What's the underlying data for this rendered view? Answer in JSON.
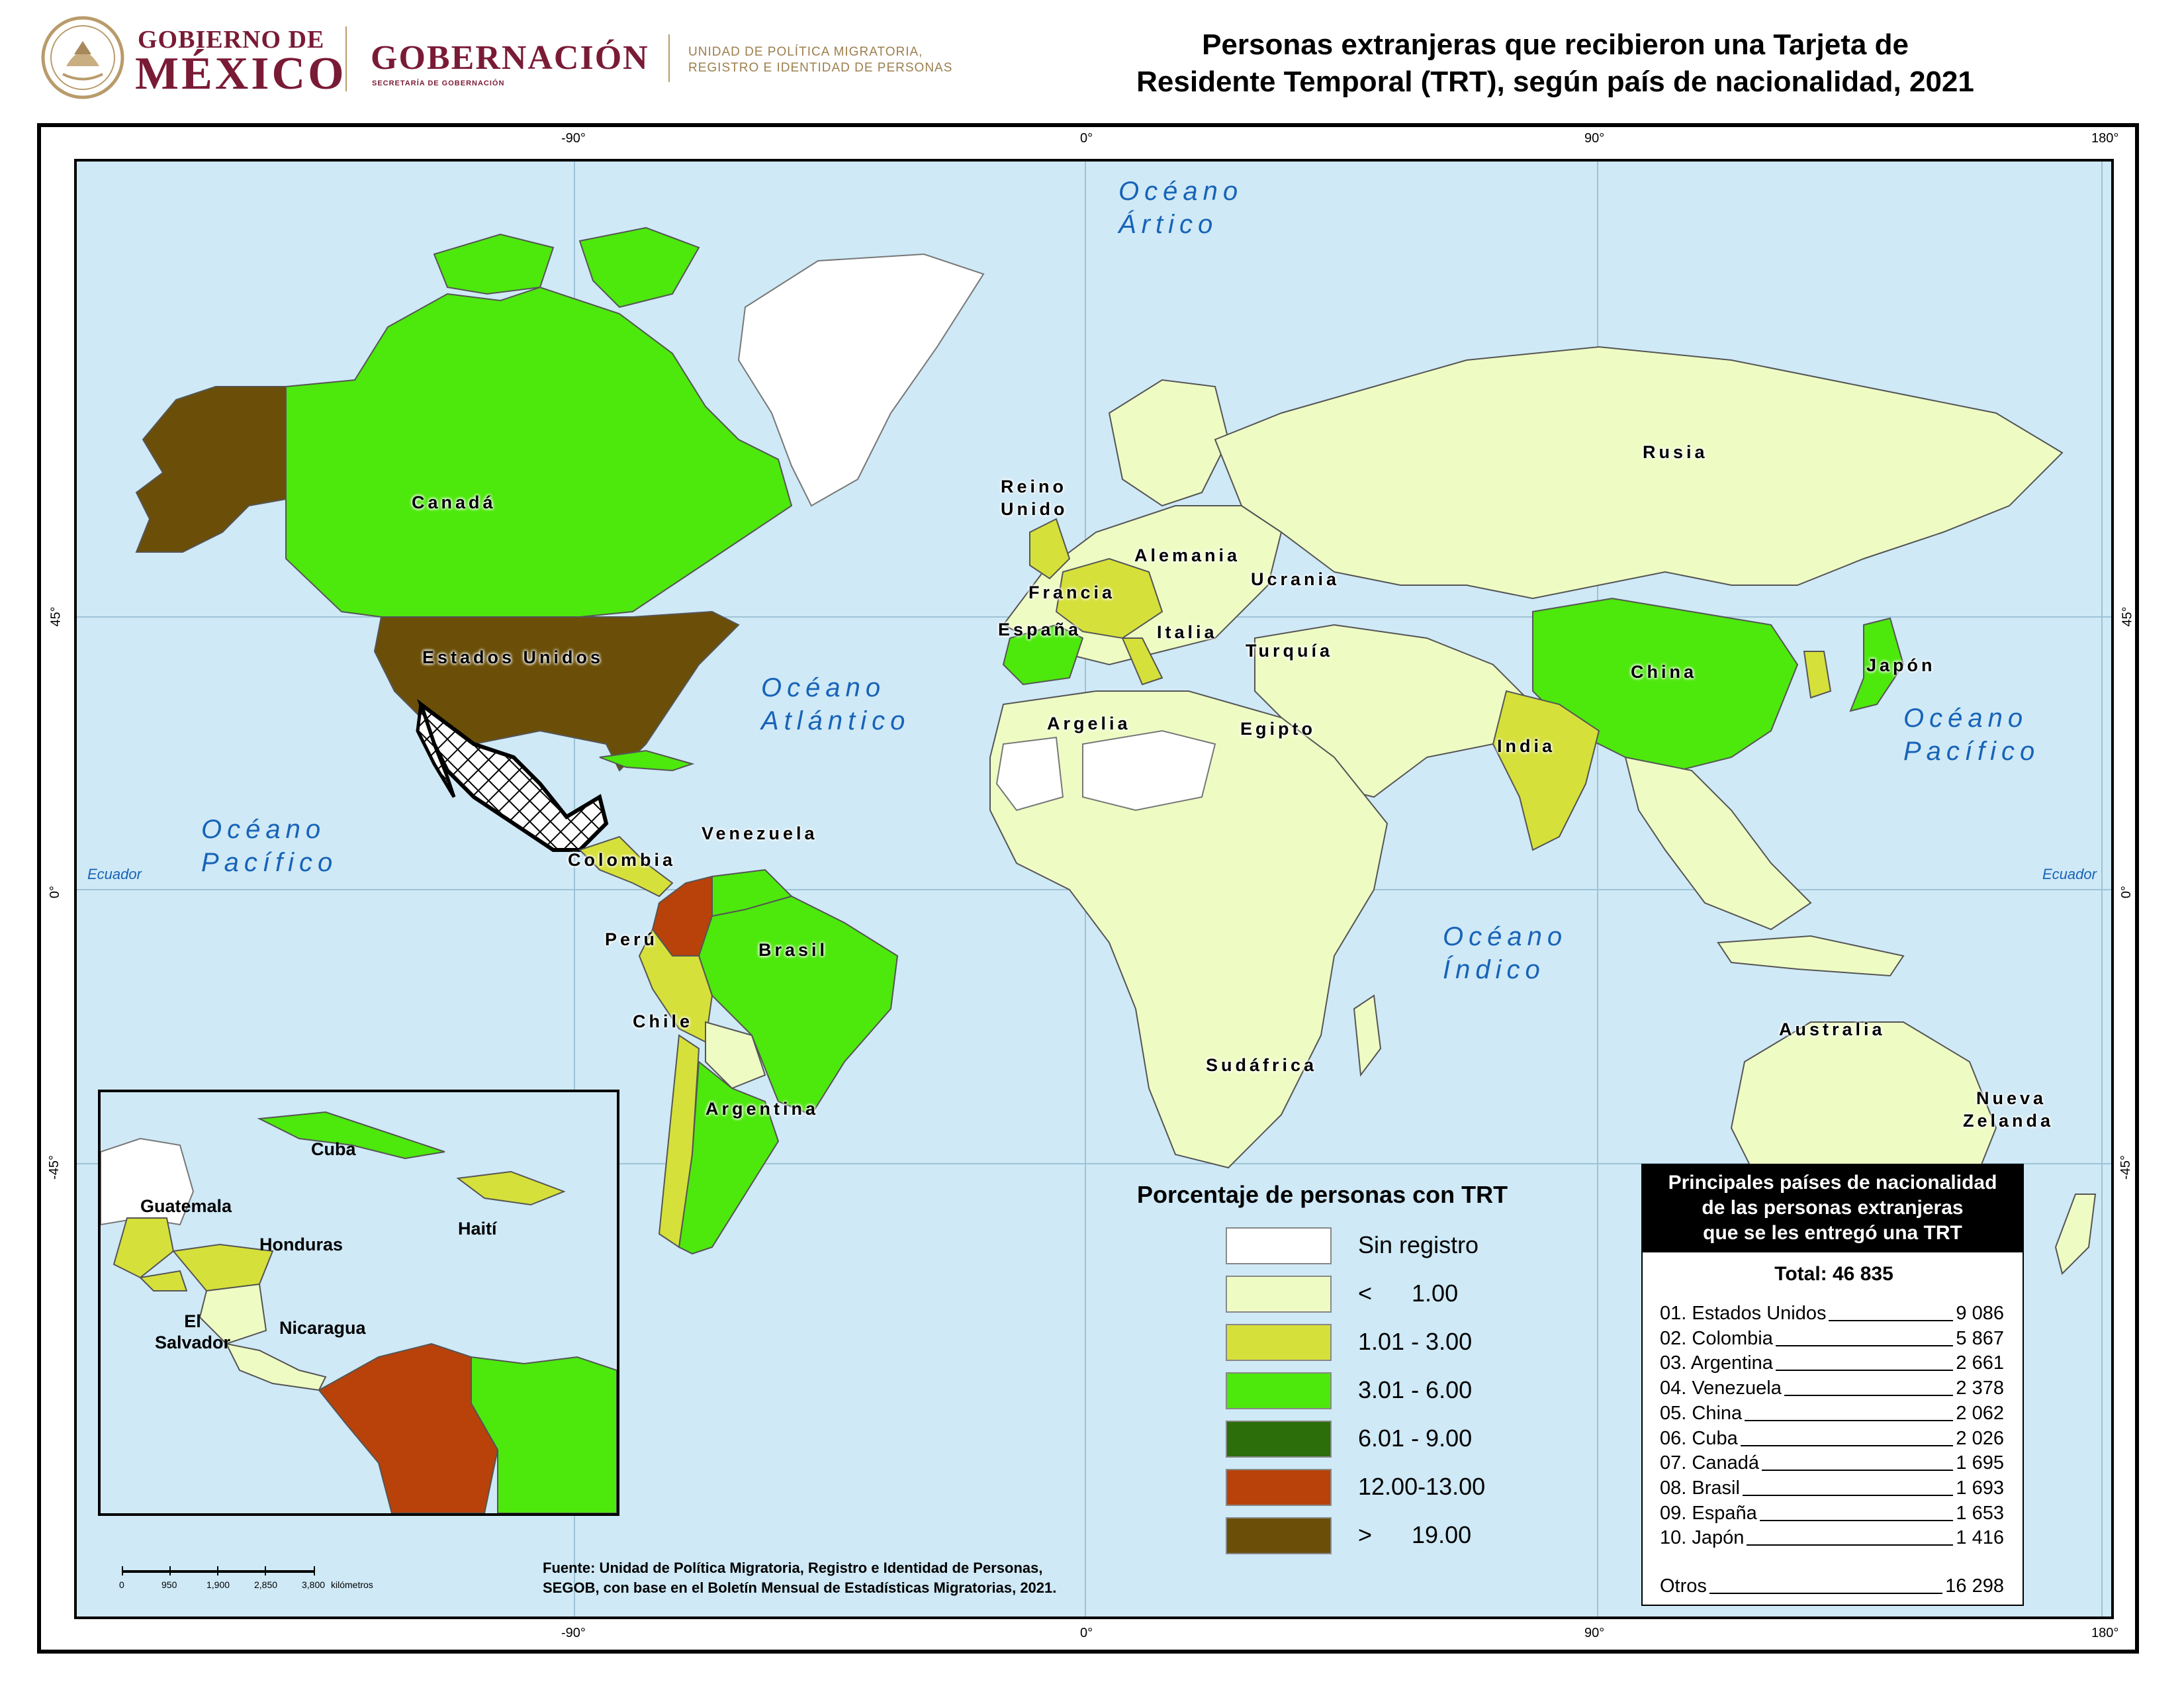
{
  "header": {
    "gov_line1": "GOBIERNO DE",
    "gov_line2": "MÉXICO",
    "dept": "GOBERNACIÓN",
    "dept_sub": "SECRETARÍA DE GOBERNACIÓN",
    "unit_line1": "UNIDAD DE POLÍTICA MIGRATORIA,",
    "unit_line2": "REGISTRO E IDENTIDAD DE PERSONAS"
  },
  "title": {
    "line1": "Personas extranjeras que recibieron una Tarjeta de",
    "line2": "Residente Temporal (TRT), según país de nacionalidad, 2021"
  },
  "graticule": {
    "top": [
      "-90°",
      "0°",
      "90°",
      "180°"
    ],
    "bottom": [
      "-90°",
      "0°",
      "90°",
      "180°"
    ],
    "left": [
      "45°",
      "0°",
      "-45°"
    ],
    "right": [
      "45°",
      "0°",
      "-45°"
    ]
  },
  "oceans": {
    "arctic": [
      "Océano",
      "Ártico"
    ],
    "atlantic": [
      "Océano",
      "Atlántico"
    ],
    "pacific_w": [
      "Océano",
      "Pacífico"
    ],
    "pacific_e": [
      "Océano",
      "Pacífico"
    ],
    "indian": [
      "Océano",
      "Índico"
    ]
  },
  "equator": {
    "left": "Ecuador",
    "right": "Ecuador"
  },
  "countries": {
    "canada": "Canadá",
    "usa": "Estados Unidos",
    "reino1": "Reino",
    "reino2": "Unido",
    "alemania": "Alemania",
    "francia": "Francia",
    "espana": "España",
    "italia": "Italia",
    "ucrania": "Ucrania",
    "turquia": "Turquía",
    "rusia": "Rusia",
    "china": "China",
    "japon": "Japón",
    "india": "India",
    "egipto": "Egipto",
    "argelia": "Argelia",
    "venezuela": "Venezuela",
    "colombia": "Colombia",
    "peru": "Perú",
    "brasil": "Brasil",
    "chile": "Chile",
    "argentina": "Argentina",
    "sudafrica": "Sudáfrica",
    "australia": "Australia",
    "nz1": "Nueva",
    "nz2": "Zelanda"
  },
  "inset": {
    "cuba": "Cuba",
    "guatemala": "Guatemala",
    "honduras": "Honduras",
    "haiti": "Haití",
    "el1": "El",
    "el2": "Salvador",
    "nicaragua": "Nicaragua"
  },
  "legend": {
    "title": "Porcentaje de personas con TRT",
    "items": [
      {
        "label": "Sin registro",
        "color": "#ffffff"
      },
      {
        "label": "<      1.00",
        "color": "#eefcc4"
      },
      {
        "label": "1.01 - 3.00",
        "color": "#d6e03a"
      },
      {
        "label": "3.01 - 6.00",
        "color": "#4de80c"
      },
      {
        "label": "6.01 - 9.00",
        "color": "#2b6e0a"
      },
      {
        "label": "12.00-13.00",
        "color": "#b8420a"
      },
      {
        "label": ">      19.00",
        "color": "#6b4f08"
      }
    ]
  },
  "ranking": {
    "header": [
      "Principales países de nacionalidad",
      "de las personas extranjeras",
      "que se les entregó una TRT"
    ],
    "total": "Total: 46 835",
    "rows": [
      {
        "name": "01. Estados Unidos",
        "value": "9 086"
      },
      {
        "name": "02. Colombia",
        "value": "5 867"
      },
      {
        "name": "03. Argentina",
        "value": "2 661"
      },
      {
        "name": "04. Venezuela",
        "value": "2 378"
      },
      {
        "name": "05. China",
        "value": "2 062"
      },
      {
        "name": "06. Cuba",
        "value": "2 026"
      },
      {
        "name": "07. Canadá",
        "value": "1 695"
      },
      {
        "name": "08. Brasil",
        "value": "1 693"
      },
      {
        "name": "09. España",
        "value": "1 653"
      },
      {
        "name": "10. Japón",
        "value": "1 416"
      }
    ],
    "others": {
      "name": "Otros",
      "value": "16 298"
    }
  },
  "scale": {
    "ticks": [
      "0",
      "950",
      "1,900",
      "2,850",
      "3,800"
    ],
    "unit": "kilómetros"
  },
  "source": {
    "line1": "Fuente: Unidad de Política Migratoria, Registro e Identidad de Personas,",
    "line2": "SEGOB, con base en el Boletín Mensual de Estadísticas Migratorias, 2021."
  }
}
